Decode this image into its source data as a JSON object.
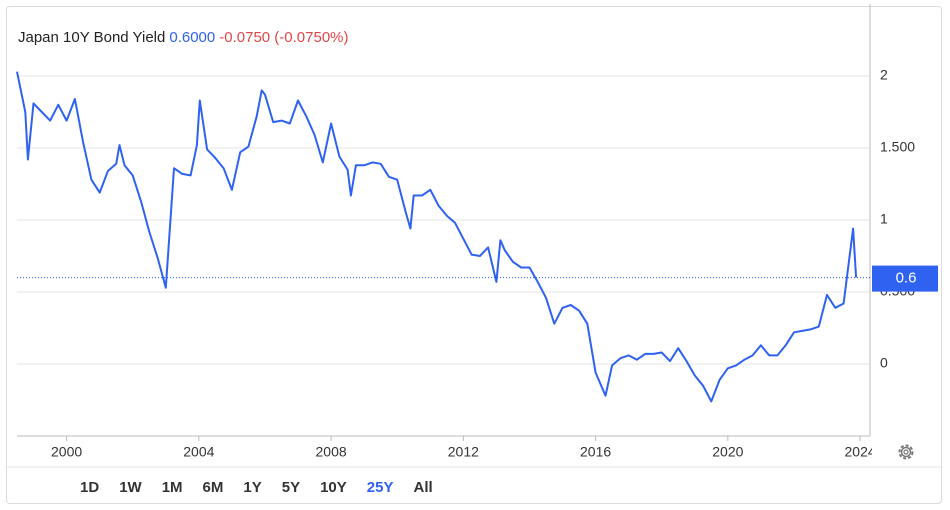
{
  "chart_data": {
    "type": "line",
    "series": [
      {
        "name": "Japan 10Y Bond Yield",
        "color": "#2f62f0",
        "values": [
          2.03,
          1.75,
          1.42,
          1.81,
          1.75,
          1.69,
          1.8,
          1.69,
          1.84,
          1.54,
          1.28,
          1.19,
          1.34,
          1.39,
          1.52,
          1.38,
          1.31,
          1.13,
          0.92,
          0.74,
          0.53,
          1.36,
          1.32,
          1.31,
          1.52,
          1.83,
          1.49,
          1.43,
          1.36,
          1.21,
          1.47,
          1.51,
          1.72,
          1.9,
          1.87,
          1.68,
          1.69,
          1.67,
          1.83,
          1.72,
          1.59,
          1.4,
          1.67,
          1.44,
          1.35,
          1.17,
          1.38,
          1.38,
          1.4,
          1.39,
          1.3,
          1.28,
          1.06,
          0.94,
          1.17,
          1.17,
          1.21,
          1.1,
          1.03,
          0.98,
          0.87,
          0.76,
          0.75,
          0.81,
          0.57,
          0.86,
          0.79,
          0.71,
          0.67,
          0.67,
          0.57,
          0.46,
          0.28,
          0.39,
          0.41,
          0.37,
          0.28,
          -0.06,
          -0.22,
          -0.01,
          0.04,
          0.06,
          0.03,
          0.07,
          0.07,
          0.08,
          0.02,
          0.11,
          0.02,
          -0.08,
          -0.15,
          -0.26,
          -0.11,
          -0.03,
          -0.01,
          0.03,
          0.06,
          0.13,
          0.06,
          0.06,
          0.13,
          0.22,
          0.23,
          0.24,
          0.26,
          0.48,
          0.39,
          0.42,
          0.94,
          0.6
        ]
      }
    ],
    "x": [
      1998.5,
      1998.75,
      1998.83,
      1999,
      1999.25,
      1999.5,
      1999.75,
      2000,
      2000.25,
      2000.5,
      2000.75,
      2001,
      2001.25,
      2001.5,
      2001.6,
      2001.75,
      2002,
      2002.25,
      2002.5,
      2002.75,
      2003,
      2003.25,
      2003.5,
      2003.75,
      2003.94,
      2004.03,
      2004.25,
      2004.5,
      2004.75,
      2005,
      2005.25,
      2005.5,
      2005.75,
      2005.9,
      2006,
      2006.25,
      2006.5,
      2006.75,
      2007,
      2007.25,
      2007.5,
      2007.75,
      2008,
      2008.25,
      2008.5,
      2008.6,
      2008.75,
      2009,
      2009.25,
      2009.5,
      2009.75,
      2010,
      2010.25,
      2010.4,
      2010.5,
      2010.75,
      2011,
      2011.25,
      2011.5,
      2011.75,
      2012,
      2012.25,
      2012.5,
      2012.75,
      2013,
      2013.12,
      2013.25,
      2013.5,
      2013.75,
      2014,
      2014.25,
      2014.5,
      2014.75,
      2015,
      2015.25,
      2015.5,
      2015.75,
      2016,
      2016.3,
      2016.5,
      2016.75,
      2017,
      2017.25,
      2017.5,
      2017.75,
      2018,
      2018.25,
      2018.5,
      2018.75,
      2019,
      2019.25,
      2019.5,
      2019.75,
      2020,
      2020.25,
      2020.5,
      2020.75,
      2021,
      2021.25,
      2021.5,
      2021.75,
      2022,
      2022.25,
      2022.5,
      2022.75,
      2023,
      2023.25,
      2023.5,
      2023.79,
      2023.88
    ],
    "xlim": [
      1998.5,
      2024.3
    ],
    "xticks": [
      2000,
      2004,
      2008,
      2012,
      2016,
      2020,
      2024
    ],
    "ylim": [
      -0.5,
      2.5
    ],
    "yticks": [
      0,
      {
        "value": 0.5,
        "label": "0.500"
      },
      1,
      {
        "value": 1.5,
        "label": "1.500"
      },
      2
    ],
    "grid": true,
    "last_value": 0.6,
    "price": "0.6000",
    "price_color": "#2f62f0",
    "change": "-0.0750 (-0.0750%)",
    "change_color": "#e04848"
  },
  "toolbar": {
    "ranges": [
      "1D",
      "1W",
      "1M",
      "6M",
      "1Y",
      "5Y",
      "10Y",
      "25Y",
      "All"
    ],
    "active": "25Y"
  }
}
